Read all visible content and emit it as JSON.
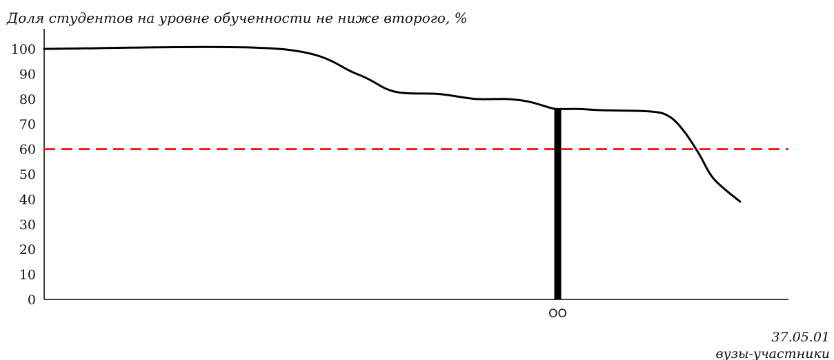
{
  "chart_data": {
    "type": "line",
    "title": "Доля студентов на уровне обученности не ниже второго, %",
    "xlabel": "вузы-участники",
    "ylabel": "",
    "code": "37.05.01",
    "ylim": [
      0,
      100
    ],
    "yticks": [
      0,
      10,
      20,
      30,
      40,
      50,
      60,
      70,
      80,
      90,
      100
    ],
    "xlim": [
      0,
      100
    ],
    "grid": false,
    "series": [
      {
        "x": [
          0,
          31.5,
          42,
          47,
          53,
          58,
          62,
          65,
          68,
          69,
          72,
          75,
          81.5,
          84,
          86,
          88,
          90,
          93.5
        ],
        "values": [
          100,
          100,
          90,
          83,
          82,
          80,
          80,
          79,
          76.5,
          76,
          76,
          75.5,
          75,
          73,
          67,
          58,
          48,
          39
        ],
        "color": "#000000"
      }
    ],
    "threshold": {
      "value": 60,
      "color": "#ee1c1c",
      "style": "dashed"
    },
    "marker": {
      "label": "ОО",
      "x": 69,
      "value": 76,
      "color": "#000000"
    }
  }
}
